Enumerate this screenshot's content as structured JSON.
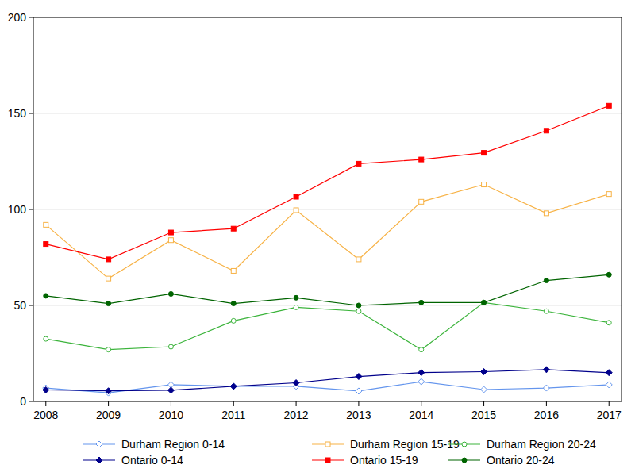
{
  "chart_data": {
    "type": "line",
    "x": [
      2008,
      2009,
      2010,
      2011,
      2012,
      2013,
      2014,
      2015,
      2016,
      2017
    ],
    "xlim": [
      2007.8,
      2017.2
    ],
    "xticks": [
      2008,
      2009,
      2010,
      2011,
      2012,
      2013,
      2014,
      2015,
      2016,
      2017
    ],
    "ylim": [
      0,
      200
    ],
    "yticks": [
      0,
      50,
      100,
      150,
      200
    ],
    "grid": true,
    "legend": "bottom",
    "series": [
      {
        "name": "Durham Region 0-14",
        "color": "#6495ED",
        "marker": "open-diamond",
        "values": [
          7,
          4.5,
          8.7,
          7.9,
          7.9,
          5.4,
          10.3,
          6.2,
          7,
          8.7
        ]
      },
      {
        "name": "Durham Region 15-19",
        "color": "#F7B245",
        "marker": "open-square",
        "values": [
          92,
          64,
          84,
          68,
          99.6,
          74,
          104,
          113,
          98,
          108
        ]
      },
      {
        "name": "Durham Region 20-24",
        "color": "#3CB43C",
        "marker": "open-circle",
        "values": [
          32.6,
          27,
          28.5,
          42,
          49,
          47,
          27,
          51.5,
          47,
          41
        ]
      },
      {
        "name": "Ontario 0-14",
        "color": "#00008B",
        "marker": "diamond",
        "values": [
          6,
          5.5,
          5.8,
          7.9,
          9.7,
          13,
          15,
          15.5,
          16.6,
          15
        ]
      },
      {
        "name": "Ontario 15-19",
        "color": "#FF0000",
        "marker": "square",
        "values": [
          82,
          74,
          88,
          90,
          106.6,
          123.8,
          126,
          129.5,
          141,
          154
        ]
      },
      {
        "name": "Ontario 20-24",
        "color": "#006400",
        "marker": "circle",
        "values": [
          55,
          51,
          56,
          51,
          54,
          50,
          51.5,
          51.5,
          63,
          66
        ]
      }
    ]
  }
}
